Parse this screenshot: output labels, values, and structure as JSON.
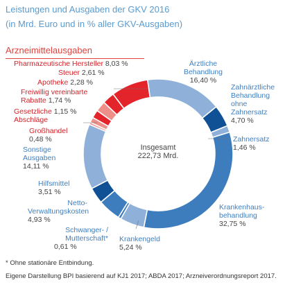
{
  "header": {
    "title": "Leistungen und Ausgaben der GKV 2016",
    "subtitle": "(in Mrd. Euro und in % aller GKV-Ausgaben)",
    "section": "Arzneimittelausgaben"
  },
  "center": {
    "label": "Insgesamt",
    "value": "222,73 Mrd."
  },
  "footnote": "* Ohne stationäre Entbindung.",
  "source": "Eigene Darstellung BPI basierend auf KJ1 2017; ABDA 2017; Arzneiverordnungsreport 2017.",
  "labels": {
    "aerztlich": [
      "Ärztliche",
      "Behandlung",
      "16,40 %"
    ],
    "zahn": [
      "Zahnärztliche",
      "Behandlung",
      "ohne",
      "Zahnersatz",
      "4,70 %"
    ],
    "zahnersatz": [
      "Zahnersatz",
      "1,46 %"
    ],
    "kranken": [
      "Krankenhaus-",
      "behandlung",
      "32,75 %"
    ],
    "krankengeld": [
      "Krankengeld",
      "5,24 %"
    ],
    "schwanger": [
      "Schwanger- /",
      "Mutterschaft*",
      "0,61 %"
    ],
    "netto": [
      "Netto-",
      "Verwaltungskosten",
      "4,93 %"
    ],
    "hilfsmittel": [
      "Hilfsmittel",
      "3,51 %"
    ],
    "sonstige": [
      "Sonstige",
      "Ausgaben",
      "14,11 %"
    ],
    "grosshandel": [
      "Großhandel",
      "0,48 %"
    ],
    "abschlaege": [
      "Gesetzliche",
      "Abschläge",
      "1,15 %"
    ],
    "rabatte": [
      "Freiwillig vereinbarte",
      "Rabatte",
      "1,74 %"
    ],
    "apotheke": [
      "Apotheke",
      "2,28 %"
    ],
    "steuer": [
      "Steuer",
      "2,61 %"
    ],
    "pharma": [
      "Pharmazeutische Hersteller",
      "8,03 %"
    ]
  },
  "colors": {
    "light_blue": "#8fb1d9",
    "mid_blue": "#3d7cbd",
    "dark_blue": "#0f5194",
    "red": "#e3242b",
    "light_red": "#ef8f8a",
    "separator_red": "#e0413c"
  },
  "chart_data": {
    "type": "pie",
    "donut": true,
    "title": "Leistungen und Ausgaben der GKV 2016",
    "unit": "%",
    "total": "222,73 Mrd.",
    "slices": [
      {
        "name": "Ärztliche Behandlung",
        "value": 16.4,
        "color": "#8fb1d9"
      },
      {
        "name": "Zahnärztliche Behandlung ohne Zahnersatz",
        "value": 4.7,
        "color": "#0f5194"
      },
      {
        "name": "Zahnersatz",
        "value": 1.46,
        "color": "#8fb1d9"
      },
      {
        "name": "Krankenhausbehandlung",
        "value": 32.75,
        "color": "#3d7cbd"
      },
      {
        "name": "Krankengeld",
        "value": 5.24,
        "color": "#8fb1d9"
      },
      {
        "name": "Schwanger- / Mutterschaft*",
        "value": 0.61,
        "color": "#3d7cbd"
      },
      {
        "name": "Netto-Verwaltungskosten",
        "value": 4.93,
        "color": "#3d7cbd"
      },
      {
        "name": "Hilfsmittel",
        "value": 3.51,
        "color": "#0f5194"
      },
      {
        "name": "Sonstige Ausgaben",
        "value": 14.11,
        "color": "#8fb1d9"
      },
      {
        "name": "Großhandel",
        "value": 0.48,
        "color": "#ef8f8a"
      },
      {
        "name": "Gesetzliche Abschläge",
        "value": 1.15,
        "color": "#ef8f8a"
      },
      {
        "name": "Freiwillig vereinbarte Rabatte",
        "value": 1.74,
        "color": "#e3242b"
      },
      {
        "name": "Apotheke",
        "value": 2.28,
        "color": "#ef8f8a"
      },
      {
        "name": "Steuer",
        "value": 2.61,
        "color": "#e3242b"
      },
      {
        "name": "Pharmazeutische Hersteller",
        "value": 8.03,
        "color": "#e3242b"
      }
    ]
  }
}
